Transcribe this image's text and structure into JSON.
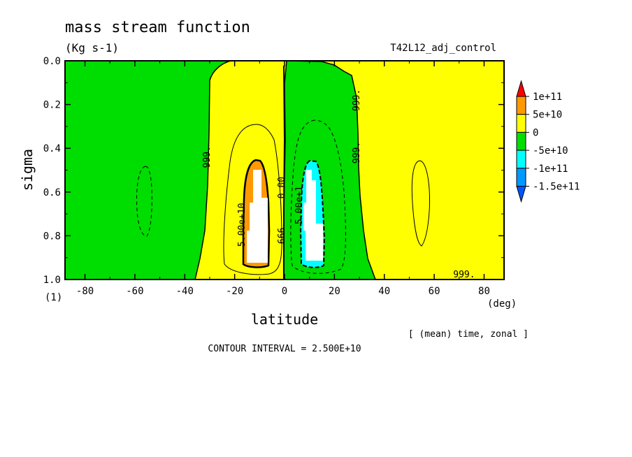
{
  "header": {
    "title": "mass stream function",
    "units": "(Kg s-1)",
    "run": "T42L12_adj_control",
    "x_unit": "(deg)",
    "y_unit": "(1)",
    "averaging": "[ (mean) time, zonal ]",
    "contour_interval": "CONTOUR INTERVAL = 2.500E+10"
  },
  "chart_data": {
    "type": "heatmap",
    "title": "mass stream function",
    "xlabel": "latitude",
    "ylabel": "sigma",
    "xlim": [
      -88,
      88
    ],
    "ylim": [
      1.0,
      0.0
    ],
    "x_ticks": [
      -80,
      -60,
      -40,
      -20,
      0,
      20,
      40,
      60,
      80
    ],
    "y_ticks": [
      0.0,
      0.2,
      0.4,
      0.6,
      0.8,
      1.0
    ],
    "x_tick_labels": [
      "-80",
      "-60",
      "-40",
      "-20",
      "0",
      "20",
      "40",
      "60",
      "80"
    ],
    "y_tick_labels": [
      "0.0",
      "0.2",
      "0.4",
      "0.6",
      "0.8",
      "1.0"
    ],
    "colorbar": {
      "labels": [
        "1e+11",
        "5e+10",
        "0",
        "-5e+10",
        "-1e+11",
        "-1.5e+11"
      ],
      "colors": [
        "#ff0000",
        "#ff9900",
        "#ffff00",
        "#00dd00",
        "#00ffff",
        "#0099ff",
        "#0055ff"
      ]
    },
    "contour_labels": [
      {
        "text": "999.",
        "x": -30,
        "y": 0.44,
        "rot": -90
      },
      {
        "text": "5.00e+10",
        "x": -16,
        "y": 0.75,
        "rot": -90
      },
      {
        "text": "0.00",
        "x": 0,
        "y": 0.58,
        "rot": -90
      },
      {
        "text": "666",
        "x": 0,
        "y": 0.8,
        "rot": -90
      },
      {
        "text": "5.00e+1",
        "x": 7,
        "y": 0.66,
        "rot": -90
      },
      {
        "text": "999.",
        "x": 30,
        "y": 0.18,
        "rot": -90
      },
      {
        "text": "999.",
        "x": 30,
        "y": 0.42,
        "rot": -90
      },
      {
        "text": "999.",
        "x": 72,
        "y": 0.99,
        "rot": 0
      }
    ]
  }
}
